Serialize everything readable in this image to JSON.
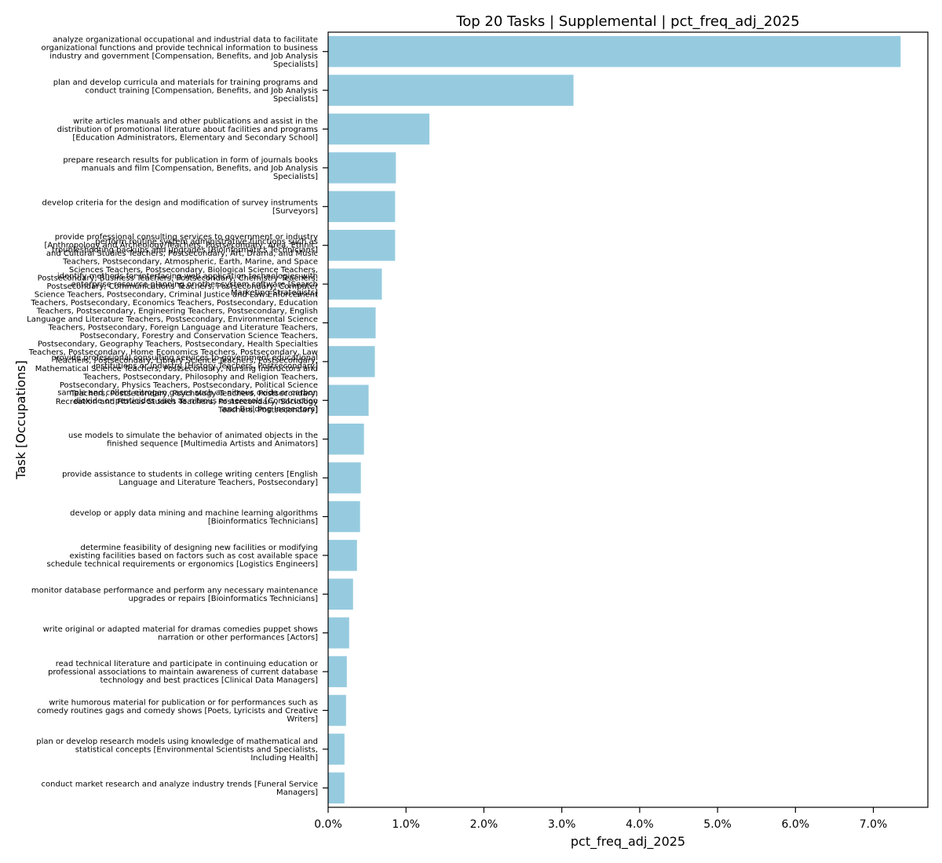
{
  "chart_data": {
    "type": "bar",
    "orientation": "horizontal",
    "title": "Top 20 Tasks | Supplemental | pct_freq_adj_2025",
    "xlabel": "pct_freq_adj_2025",
    "ylabel": "Task [Occupations]",
    "xlim": [
      0,
      7.7
    ],
    "x_ticks": [
      0,
      1,
      2,
      3,
      4,
      5,
      6,
      7
    ],
    "x_tick_labels": [
      "0.0%",
      "1.0%",
      "2.0%",
      "3.0%",
      "4.0%",
      "5.0%",
      "6.0%",
      "7.0%"
    ],
    "bar_color": "#96cbdf",
    "grid": false,
    "categories": [
      [
        "analyze organizational occupational and industrial data to facilitate",
        "organizational functions and provide technical information to business",
        "industry and government  [Compensation, Benefits, and Job Analysis",
        "Specialists]"
      ],
      [
        "plan and develop curricula and materials for training programs and",
        "conduct training  [Compensation, Benefits, and Job Analysis",
        "Specialists]"
      ],
      [
        "write articles manuals and other publications and assist in the",
        "distribution of promotional literature about facilities and programs",
        "[Education Administrators, Elementary and Secondary School]"
      ],
      [
        "prepare research results for publication in form of journals books",
        "manuals and film  [Compensation, Benefits, and Job Analysis",
        "Specialists]"
      ],
      [
        "develop criteria for the design and modification of survey instruments",
        "[Surveyors]"
      ],
      [
        "perform routine system administrative functions such as",
        "troubleshooting backups and upgrades  [Bioinformatics Technicians]"
      ],
      [
        "identify methods for interfacing web application technologies with",
        "enterprise resource planning or other system software  [Search",
        "Marketing Strategists]"
      ],
      [
        "provide professional consulting services to government or industry",
        "[Anthropology and Archeology Teachers, Postsecondary, Area, Ethnic,",
        "and Cultural Studies Teachers, Postsecondary, Art, Drama, and Music",
        "Teachers, Postsecondary, Atmospheric, Earth, Marine, and Space",
        "Sciences Teachers, Postsecondary, Biological Science Teachers,",
        "Postsecondary, Business Teachers, Postsecondary, Chemistry Teachers,",
        "Postsecondary, Communications Teachers, Postsecondary, Computer",
        "Science Teachers, Postsecondary, Criminal Justice and Law Enforcement",
        "Teachers, Postsecondary, Economics Teachers, Postsecondary, Education",
        "Teachers, Postsecondary, Engineering Teachers, Postsecondary, English",
        "Language and Literature Teachers, Postsecondary, Environmental Science",
        "Teachers, Postsecondary, Foreign Language and Literature Teachers,",
        "Postsecondary, Forestry and Conservation Science Teachers,",
        "Postsecondary, Geography Teachers, Postsecondary, Health Specialties",
        "Teachers, Postsecondary, Home Economics Teachers, Postsecondary, Law",
        "Teachers, Postsecondary, Library Science Teachers, Postsecondary,",
        "Mathematical Science Teachers, Postsecondary, Nursing Instructors and",
        "Teachers, Postsecondary, Philosophy and Religion Teachers,",
        "Postsecondary, Physics Teachers, Postsecondary, Political Science",
        "Teachers, Postsecondary, Psychology Teachers, Postsecondary,",
        "Recreation and Fitness Studies Teachers, Postsecondary, Sociology",
        "Teachers, Postsecondary]"
      ],
      [
        "provide professional consulting services to government educational",
        "institutions or industry  [History Teachers, Postsecondary]"
      ],
      [
        "sample and collect nitrogen gases such as nitrous oxide or carbon",
        "dioxide or pesticides such as nitrous or aerosols  [Construction",
        "and Building Inspectors]"
      ],
      [
        "use models to simulate the behavior of animated objects in the",
        "finished sequence  [Multimedia Artists and Animators]"
      ],
      [
        "provide assistance to students in college writing centers  [English",
        "Language and Literature Teachers, Postsecondary]"
      ],
      [
        "develop or apply data mining and machine learning algorithms",
        "[Bioinformatics Technicians]"
      ],
      [
        "determine feasibility of designing new facilities or modifying",
        "existing facilities based on factors such as cost available space",
        "schedule technical requirements or ergonomics  [Logistics Engineers]"
      ],
      [
        "monitor database performance and perform any necessary maintenance",
        "upgrades or repairs  [Bioinformatics Technicians]"
      ],
      [
        "write original or adapted material for dramas comedies puppet shows",
        "narration or other performances  [Actors]"
      ],
      [
        "read technical literature and participate in continuing education or",
        "professional associations to maintain awareness of current database",
        "technology and best practices  [Clinical Data Managers]"
      ],
      [
        "write humorous material for publication or for performances such as",
        "comedy routines gags and comedy shows  [Poets, Lyricists and Creative",
        "Writers]"
      ],
      [
        "plan or develop research models using knowledge of mathematical and",
        "statistical concepts  [Environmental Scientists and Specialists,",
        "Including Health]"
      ],
      [
        "conduct market research and analyze industry trends  [Funeral Service",
        "Managers]"
      ]
    ],
    "values": [
      7.35,
      3.15,
      1.3,
      0.87,
      0.86,
      0.86,
      0.69,
      0.61,
      0.6,
      0.52,
      0.46,
      0.42,
      0.41,
      0.37,
      0.32,
      0.27,
      0.24,
      0.23,
      0.21,
      0.21
    ]
  }
}
